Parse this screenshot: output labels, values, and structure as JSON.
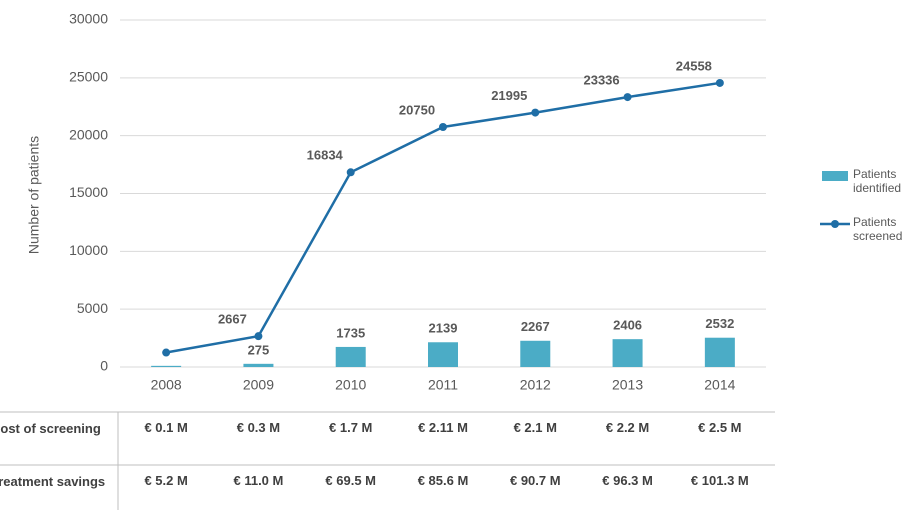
{
  "chart_data": {
    "type": "bar-line",
    "y_axis_label": "Number of patients",
    "categories": [
      "2008",
      "2009",
      "2010",
      "2011",
      "2012",
      "2013",
      "2014"
    ],
    "ylim": [
      0,
      30000
    ],
    "yticks": [
      0,
      5000,
      10000,
      15000,
      20000,
      25000,
      30000
    ],
    "grid": true,
    "legend": "right",
    "series": [
      {
        "name": "Patients identified",
        "type": "bar",
        "color": "#4bacc6",
        "values": [
          100,
          275,
          1735,
          2139,
          2267,
          2406,
          2532
        ],
        "value_labels": [
          null,
          "275",
          "1735",
          "2139",
          "2267",
          "2406",
          "2532"
        ]
      },
      {
        "name": "Patients screened",
        "type": "line",
        "color": "#1f6ea6",
        "values": [
          1250,
          2667,
          16834,
          20750,
          21995,
          23336,
          24558
        ],
        "value_labels": [
          null,
          "2667",
          "16834",
          "20750",
          "21995",
          "23336",
          "24558"
        ]
      }
    ]
  },
  "table": {
    "rows": [
      {
        "label": "Cost of screening",
        "cells": [
          "€ 0.1 M",
          "€ 0.3 M",
          "€ 1.7 M",
          "€ 2.11 M",
          "€ 2.1 M",
          "€ 2.2 M",
          "€ 2.5 M"
        ]
      },
      {
        "label": "Treatment savings *",
        "cells": [
          "€ 5.2 M",
          "€ 11.0 M",
          "€ 69.5 M",
          "€ 85.6 M",
          "€ 90.7 M",
          "€ 96.3 M",
          "€ 101.3 M"
        ]
      }
    ]
  }
}
